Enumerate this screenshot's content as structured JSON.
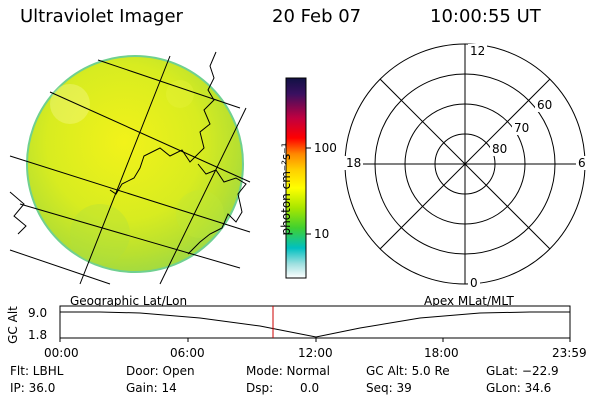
{
  "header": {
    "instrument": "Ultraviolet Imager",
    "date": "20 Feb 07",
    "time": "10:00:55 UT"
  },
  "colorbar": {
    "unit_label": "photon cm⁻²s⁻¹",
    "ticks": [
      "100",
      "10"
    ],
    "colors": [
      "#111144",
      "#c00040",
      "#ff0000",
      "#ff8800",
      "#ffd000",
      "#ffff00",
      "#a8e600",
      "#40d030",
      "#00c0c0",
      "#a0e0e0",
      "#ffffff"
    ]
  },
  "polar_plot": {
    "labels": {
      "top": "12",
      "bottom": "0",
      "left": "18",
      "right": "6",
      "ring60": "60",
      "ring70": "70",
      "ring80": "80"
    }
  },
  "image_panel": {
    "label": "Geographic Lat/Lon"
  },
  "polar_panel": {
    "label": "Apex MLat/MLT"
  },
  "altitude_plot": {
    "ylabel": "GC Alt",
    "yticks": [
      "9.0",
      "1.8"
    ],
    "xticks": [
      "00:00",
      "06:00",
      "12:00",
      "18:00",
      "23:59"
    ],
    "marker_color": "#cc0000"
  },
  "info": {
    "row1": {
      "flt": "Flt: LBHL",
      "door": "Door: Open",
      "mode": "Mode: Normal",
      "gcalt": "GC Alt: 5.0 Re",
      "glat": "GLat: −22.9"
    },
    "row2": {
      "ip": "IP: 36.0",
      "gain": "Gain: 14",
      "dsp_label": "Dsp:",
      "dsp_value": "0.0",
      "seq": "Seq: 39",
      "glon": "GLon:  34.6"
    }
  }
}
